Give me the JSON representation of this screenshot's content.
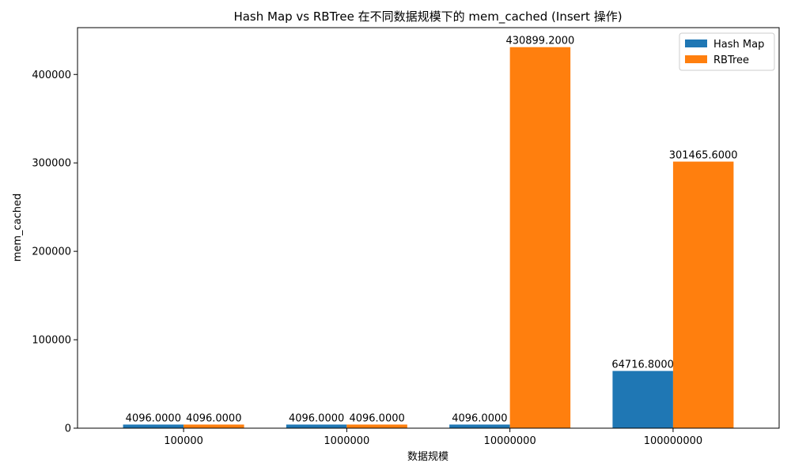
{
  "chart_data": {
    "type": "bar",
    "title": "Hash Map vs RBTree 在不同数据规模下的 mem_cached (Insert 操作)",
    "xlabel": "数据规模",
    "ylabel": "mem_cached",
    "categories": [
      "100000",
      "1000000",
      "10000000",
      "100000000"
    ],
    "series": [
      {
        "name": "Hash Map",
        "color": "#1f77b4",
        "values": [
          4096.0,
          4096.0,
          4096.0,
          64716.8
        ],
        "labels": [
          "4096.0000",
          "4096.0000",
          "4096.0000",
          "64716.8000"
        ]
      },
      {
        "name": "RBTree",
        "color": "#ff7f0e",
        "values": [
          4096.0,
          4096.0,
          430899.2,
          301465.6
        ],
        "labels": [
          "4096.0000",
          "4096.0000",
          "430899.2000",
          "301465.6000"
        ]
      }
    ],
    "ylim": [
      0,
      452944.16
    ],
    "yticks": [
      0,
      100000,
      200000,
      300000,
      400000
    ],
    "ytick_labels": [
      "0",
      "100000",
      "200000",
      "300000",
      "400000"
    ],
    "legend_position": "top-right",
    "grid": false
  }
}
